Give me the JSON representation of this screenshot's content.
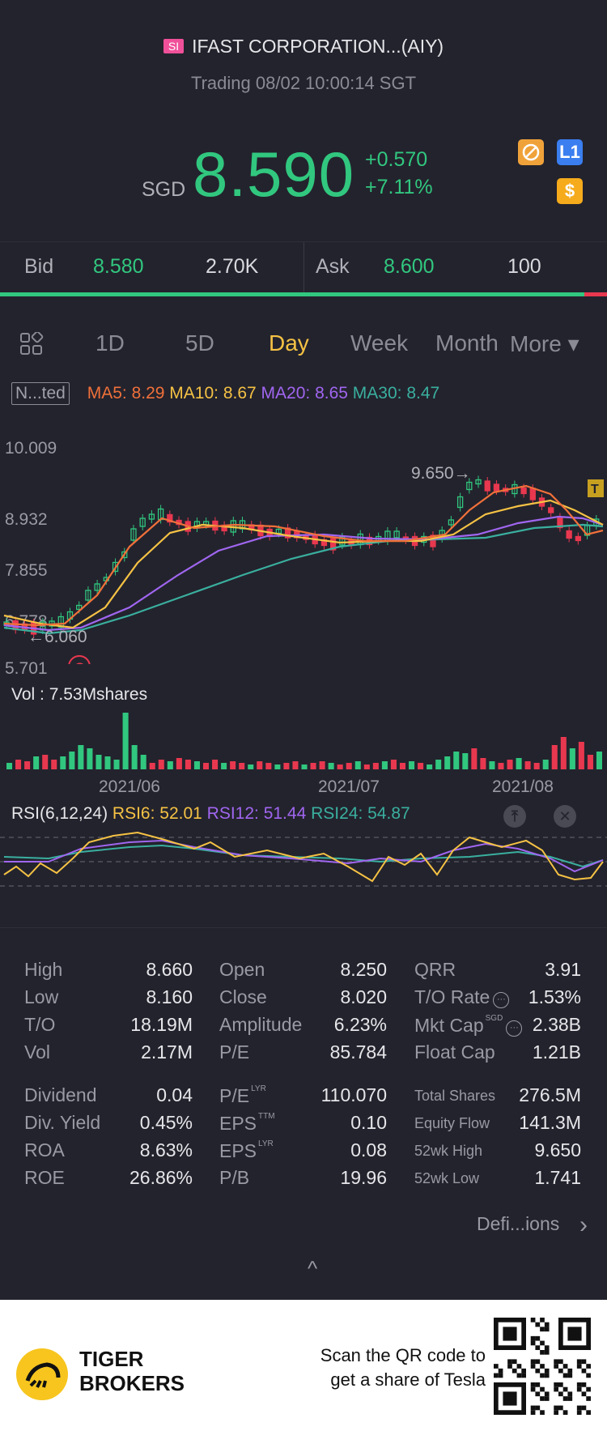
{
  "header": {
    "exchange_badge": "SI",
    "title": "IFAST CORPORATION...(AIY)",
    "status": "Trading 08/02 10:00:14 SGT"
  },
  "quote": {
    "currency": "SGD",
    "price": "8.590",
    "change": "+0.570",
    "change_pct": "+7.11%",
    "level_badge": "L1",
    "dollar_badge": "$"
  },
  "bidask": {
    "bid_label": "Bid",
    "bid_price": "8.580",
    "bid_size": "2.70K",
    "ask_label": "Ask",
    "ask_price": "8.600",
    "ask_size": "100",
    "bid_share": 0.963
  },
  "tabs": [
    "1D",
    "5D",
    "Day",
    "Week",
    "Month",
    "More ▾"
  ],
  "active_tab": "Day",
  "indicators": {
    "toggle": "N...ted",
    "ma5": "MA5: 8.29",
    "ma10": "MA10: 8.67",
    "ma20": "MA20: 8.65",
    "ma30": "MA30: 8.47",
    "colors": {
      "ma5": "#f0703a",
      "ma10": "#f5c244",
      "ma20": "#a066f0",
      "ma30": "#3aaf9f"
    }
  },
  "price_axis": {
    "top": "10.009",
    "mid1": "8.932",
    "mid2": "7.855",
    "low": "6.778",
    "bottom": "5.701"
  },
  "annotations": {
    "high_mark": "9.650→",
    "low_mark": "←6.060",
    "q_marker": "Q",
    "t_marker": "T"
  },
  "volume": {
    "label": "Vol  : 7.53Mshares"
  },
  "dates": [
    "2021/06",
    "2021/07",
    "2021/08"
  ],
  "rsi": {
    "label": "RSI(6,12,24)",
    "rsi6": "RSI6: 52.01",
    "rsi12": "RSI12: 51.44",
    "rsi24": "RSI24: 54.87",
    "pin_icon": "⤒",
    "close_icon": "✕"
  },
  "stats": {
    "col1": [
      {
        "label": "High",
        "value": "8.660"
      },
      {
        "label": "Low",
        "value": "8.160"
      },
      {
        "label": "T/O",
        "value": "18.19M"
      },
      {
        "label": "Vol",
        "value": "2.17M"
      },
      {
        "label": "Dividend",
        "value": "0.04"
      },
      {
        "label": "Div. Yield",
        "value": "0.45%"
      },
      {
        "label": "ROA",
        "value": "8.63%"
      },
      {
        "label": "ROE",
        "value": "26.86%"
      }
    ],
    "col2": [
      {
        "label": "Open",
        "value": "8.250"
      },
      {
        "label": "Close",
        "value": "8.020"
      },
      {
        "label": "Amplitude",
        "value": "6.23%"
      },
      {
        "label": "P/E",
        "value": "85.784"
      },
      {
        "label": "P/E",
        "sup": "LYR",
        "value": "110.070"
      },
      {
        "label": "EPS",
        "sup": "TTM",
        "value": "0.10"
      },
      {
        "label": "EPS",
        "sup": "LYR",
        "value": "0.08"
      },
      {
        "label": "P/B",
        "value": "19.96"
      }
    ],
    "col3": [
      {
        "label": "QRR",
        "value": "3.91"
      },
      {
        "label": "T/O Rate",
        "value": "1.53%"
      },
      {
        "label": "Mkt Cap",
        "sup": "SGD",
        "value": "2.38B"
      },
      {
        "label": "Float Cap",
        "value": "1.21B"
      },
      {
        "label": "Total Shares",
        "value": "276.5M"
      },
      {
        "label": "Equity Flow",
        "value": "141.3M"
      },
      {
        "label": "52wk High",
        "value": "9.650"
      },
      {
        "label": "52wk Low",
        "value": "1.741"
      }
    ],
    "definitions_link": "Defi...ions",
    "collapse_icon": "^"
  },
  "footer": {
    "brand_line1": "TIGER",
    "brand_line2": "BROKERS",
    "promo_line1": "Scan the QR code to",
    "promo_line2": "get a share of Tesla"
  }
}
